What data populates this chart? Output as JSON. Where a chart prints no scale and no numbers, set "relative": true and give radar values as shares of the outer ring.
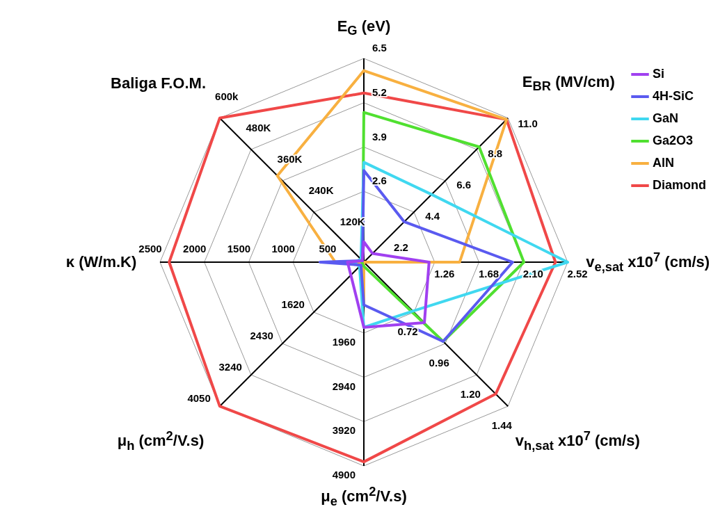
{
  "chart_data": {
    "type": "radar",
    "relative": true,
    "legend": "top right",
    "marker": "none",
    "grid": true,
    "categories": [
      "E$_{G}$ (eV)",
      "E$_{BR}$ (MV/cm)",
      "v$_{e,sat}$ x10$^{7}$ (cm/s)",
      "v$_{h,sat}$ x10$^{7}$ (cm/s)",
      "μ$_{e}$ (cm$^{2}$/V.s)",
      "μ$_{h}$ (cm$^{2}$/V.s)",
      "κ (W/m.K)",
      "Baliga F.O.M."
    ],
    "series": [
      {
        "name": "Si",
        "color": "#a040f0",
        "values": [
          0.1,
          0.06,
          0.32,
          0.42,
          0.32,
          0.09,
          0.08,
          0.01
        ]
      },
      {
        "name": "4H-SiC",
        "color": "#5a5af0",
        "values": [
          0.45,
          0.28,
          0.73,
          0.55,
          0.21,
          0.02,
          0.215,
          0.01
        ]
      },
      {
        "name": "GaN",
        "color": "#40d8f0",
        "values": [
          0.49,
          0.47,
          1.0,
          0.34,
          0.32,
          0.03,
          0.05,
          0.02
        ]
      },
      {
        "name": "Ga2O3",
        "color": "#50e030",
        "values": [
          0.735,
          0.8,
          0.785,
          0.55,
          0.02,
          0.01,
          0.01,
          0.01
        ]
      },
      {
        "name": "AlN",
        "color": "#f8b040",
        "values": [
          0.94,
          0.99,
          0.47,
          0.0,
          0.2,
          0.0,
          0.14,
          0.6
        ]
      },
      {
        "name": "Diamond",
        "color": "#f04848",
        "values": [
          0.83,
          0.99,
          0.94,
          0.915,
          0.98,
          1.0,
          0.955,
          1.0
        ]
      }
    ],
    "annotations": [
      {
        "text": "2.6",
        "x": "E$_{G}$ (eV)"
      },
      {
        "text": "3.9",
        "x": "E$_{G}$ (eV)"
      },
      {
        "text": "5.2",
        "x": "E$_{G}$ (eV)"
      },
      {
        "text": "6.5",
        "x": "E$_{G}$ (eV)"
      },
      {
        "text": "2.2",
        "x": "E$_{BR}$ (MV/cm)"
      },
      {
        "text": "4.4",
        "x": "E$_{BR}$ (MV/cm)"
      },
      {
        "text": "6.6",
        "x": "E$_{BR}$ (MV/cm)"
      },
      {
        "text": "8.8",
        "x": "E$_{BR}$ (MV/cm)"
      },
      {
        "text": "11.0",
        "x": "E$_{BR}$ (MV/cm)"
      },
      {
        "text": "1.26",
        "x": "v$_{e,sat}$ x10$^{7}$ (cm/s)"
      },
      {
        "text": "1.68",
        "x": "v$_{e,sat}$ x10$^{7}$ (cm/s)"
      },
      {
        "text": "2.10",
        "x": "v$_{e,sat}$ x10$^{7}$ (cm/s)"
      },
      {
        "text": "2.52",
        "x": "v$_{e,sat}$ x10$^{7}$ (cm/s)"
      },
      {
        "text": "0.72",
        "x": "v$_{h,sat}$ x10$^{7}$ (cm/s)"
      },
      {
        "text": "0.96",
        "x": "v$_{h,sat}$ x10$^{7}$ (cm/s)"
      },
      {
        "text": "1.20",
        "x": "v$_{h,sat}$ x10$^{7}$ (cm/s)"
      },
      {
        "text": "1.44",
        "x": "v$_{h,sat}$ x10$^{7}$ (cm/s)"
      },
      {
        "text": "1960",
        "x": "μ$_{e}$ (cm$^{2}$/V.s)"
      },
      {
        "text": "2940",
        "x": "μ$_{e}$ (cm$^{2}$/V.s)"
      },
      {
        "text": "3920",
        "x": "μ$_{e}$ (cm$^{2}$/V.s)"
      },
      {
        "text": "4900",
        "x": "μ$_{e}$ (cm$^{2}$/V.s)"
      },
      {
        "text": "1620",
        "x": "μ$_{h}$ (cm$^{2}$/V.s)"
      },
      {
        "text": "2430",
        "x": "μ$_{h}$ (cm$^{2}$/V.s)"
      },
      {
        "text": "3240",
        "x": "μ$_{h}$ (cm$^{2}$/V.s)"
      },
      {
        "text": "4050",
        "x": "μ$_{h}$ (cm$^{2}$/V.s)"
      },
      {
        "text": "500",
        "x": "κ (W/m.K)"
      },
      {
        "text": "1000",
        "x": "κ (W/m.K)"
      },
      {
        "text": "1500",
        "x": "κ (W/m.K)"
      },
      {
        "text": "2000",
        "x": "κ (W/m.K)"
      },
      {
        "text": "2500",
        "x": "κ (W/m.K)"
      },
      {
        "text": "120K",
        "x": "Baliga F.O.M."
      },
      {
        "text": "240K",
        "x": "Baliga F.O.M."
      },
      {
        "text": "360K",
        "x": "Baliga F.O.M."
      },
      {
        "text": "480K",
        "x": "Baliga F.O.M."
      },
      {
        "text": "600k",
        "x": "Baliga F.O.M."
      }
    ]
  }
}
